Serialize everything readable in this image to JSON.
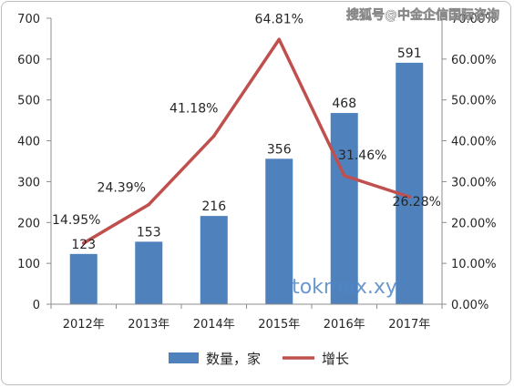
{
  "chart_data": {
    "type": "bar",
    "categories": [
      "2012年",
      "2013年",
      "2014年",
      "2015年",
      "2016年",
      "2017年"
    ],
    "series": [
      {
        "name": "数量，家",
        "type": "bar",
        "axis": "left",
        "color": "#4f81bd",
        "values": [
          123,
          153,
          216,
          356,
          468,
          591
        ],
        "labels": [
          "123",
          "153",
          "216",
          "356",
          "468",
          "591"
        ]
      },
      {
        "name": "增长",
        "type": "line",
        "axis": "right",
        "color": "#c0504d",
        "values": [
          14.95,
          24.39,
          41.18,
          64.81,
          31.46,
          26.28
        ],
        "labels": [
          "14.95%",
          "24.39%",
          "41.18%",
          "64.81%",
          "31.46%",
          "26.28%"
        ]
      }
    ],
    "ylim": [
      0,
      700
    ],
    "yticks": [
      "0",
      "100",
      "200",
      "300",
      "400",
      "500",
      "600",
      "700"
    ],
    "y2lim": [
      0,
      70
    ],
    "y2ticks": [
      "0.00%",
      "10.00%",
      "20.00%",
      "30.00%",
      "40.00%",
      "50.00%",
      "60.00%",
      "70.00%"
    ],
    "legend_position": "bottom",
    "grid": false
  },
  "watermarks": {
    "top_right": "搜狐号@中金企信国际咨询",
    "center": "tokmax.xy"
  }
}
